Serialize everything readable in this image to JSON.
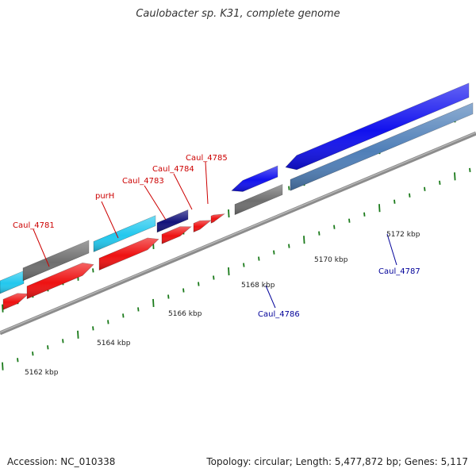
{
  "title": "Caulobacter sp. K31, complete genome",
  "footer": {
    "accession": "Accession: NC_010338",
    "summary": "Topology: circular; Length: 5,477,872 bp; Genes: 5,117"
  },
  "scale": {
    "unit": "kbp",
    "ticks": [
      "5162 kbp",
      "5164 kbp",
      "5166 kbp",
      "5168 kbp",
      "5170 kbp",
      "5172 kbp"
    ]
  },
  "colors": {
    "background": "#ffffff",
    "backbone": "#8c8c8c",
    "tick": "#1a7a1a",
    "cds_red": "#ee1111",
    "cds_cyan": "#22c8ee",
    "cds_navy": "#12127a",
    "cds_blue": "#1111ee",
    "cds_steel": "#4f7fb8",
    "cds_gray": "#6e6e6e",
    "label_red": "#cc0000",
    "label_blue": "#000099"
  },
  "genes": {
    "labels": [
      {
        "name": "Caul_4781",
        "color": "#cc0000"
      },
      {
        "name": "purH",
        "color": "#cc0000"
      },
      {
        "name": "Caul_4783",
        "color": "#cc0000"
      },
      {
        "name": "Caul_4784",
        "color": "#cc0000"
      },
      {
        "name": "Caul_4785",
        "color": "#cc0000"
      },
      {
        "name": "Caul_4786",
        "color": "#000099"
      },
      {
        "name": "Caul_4787",
        "color": "#000099"
      }
    ]
  }
}
